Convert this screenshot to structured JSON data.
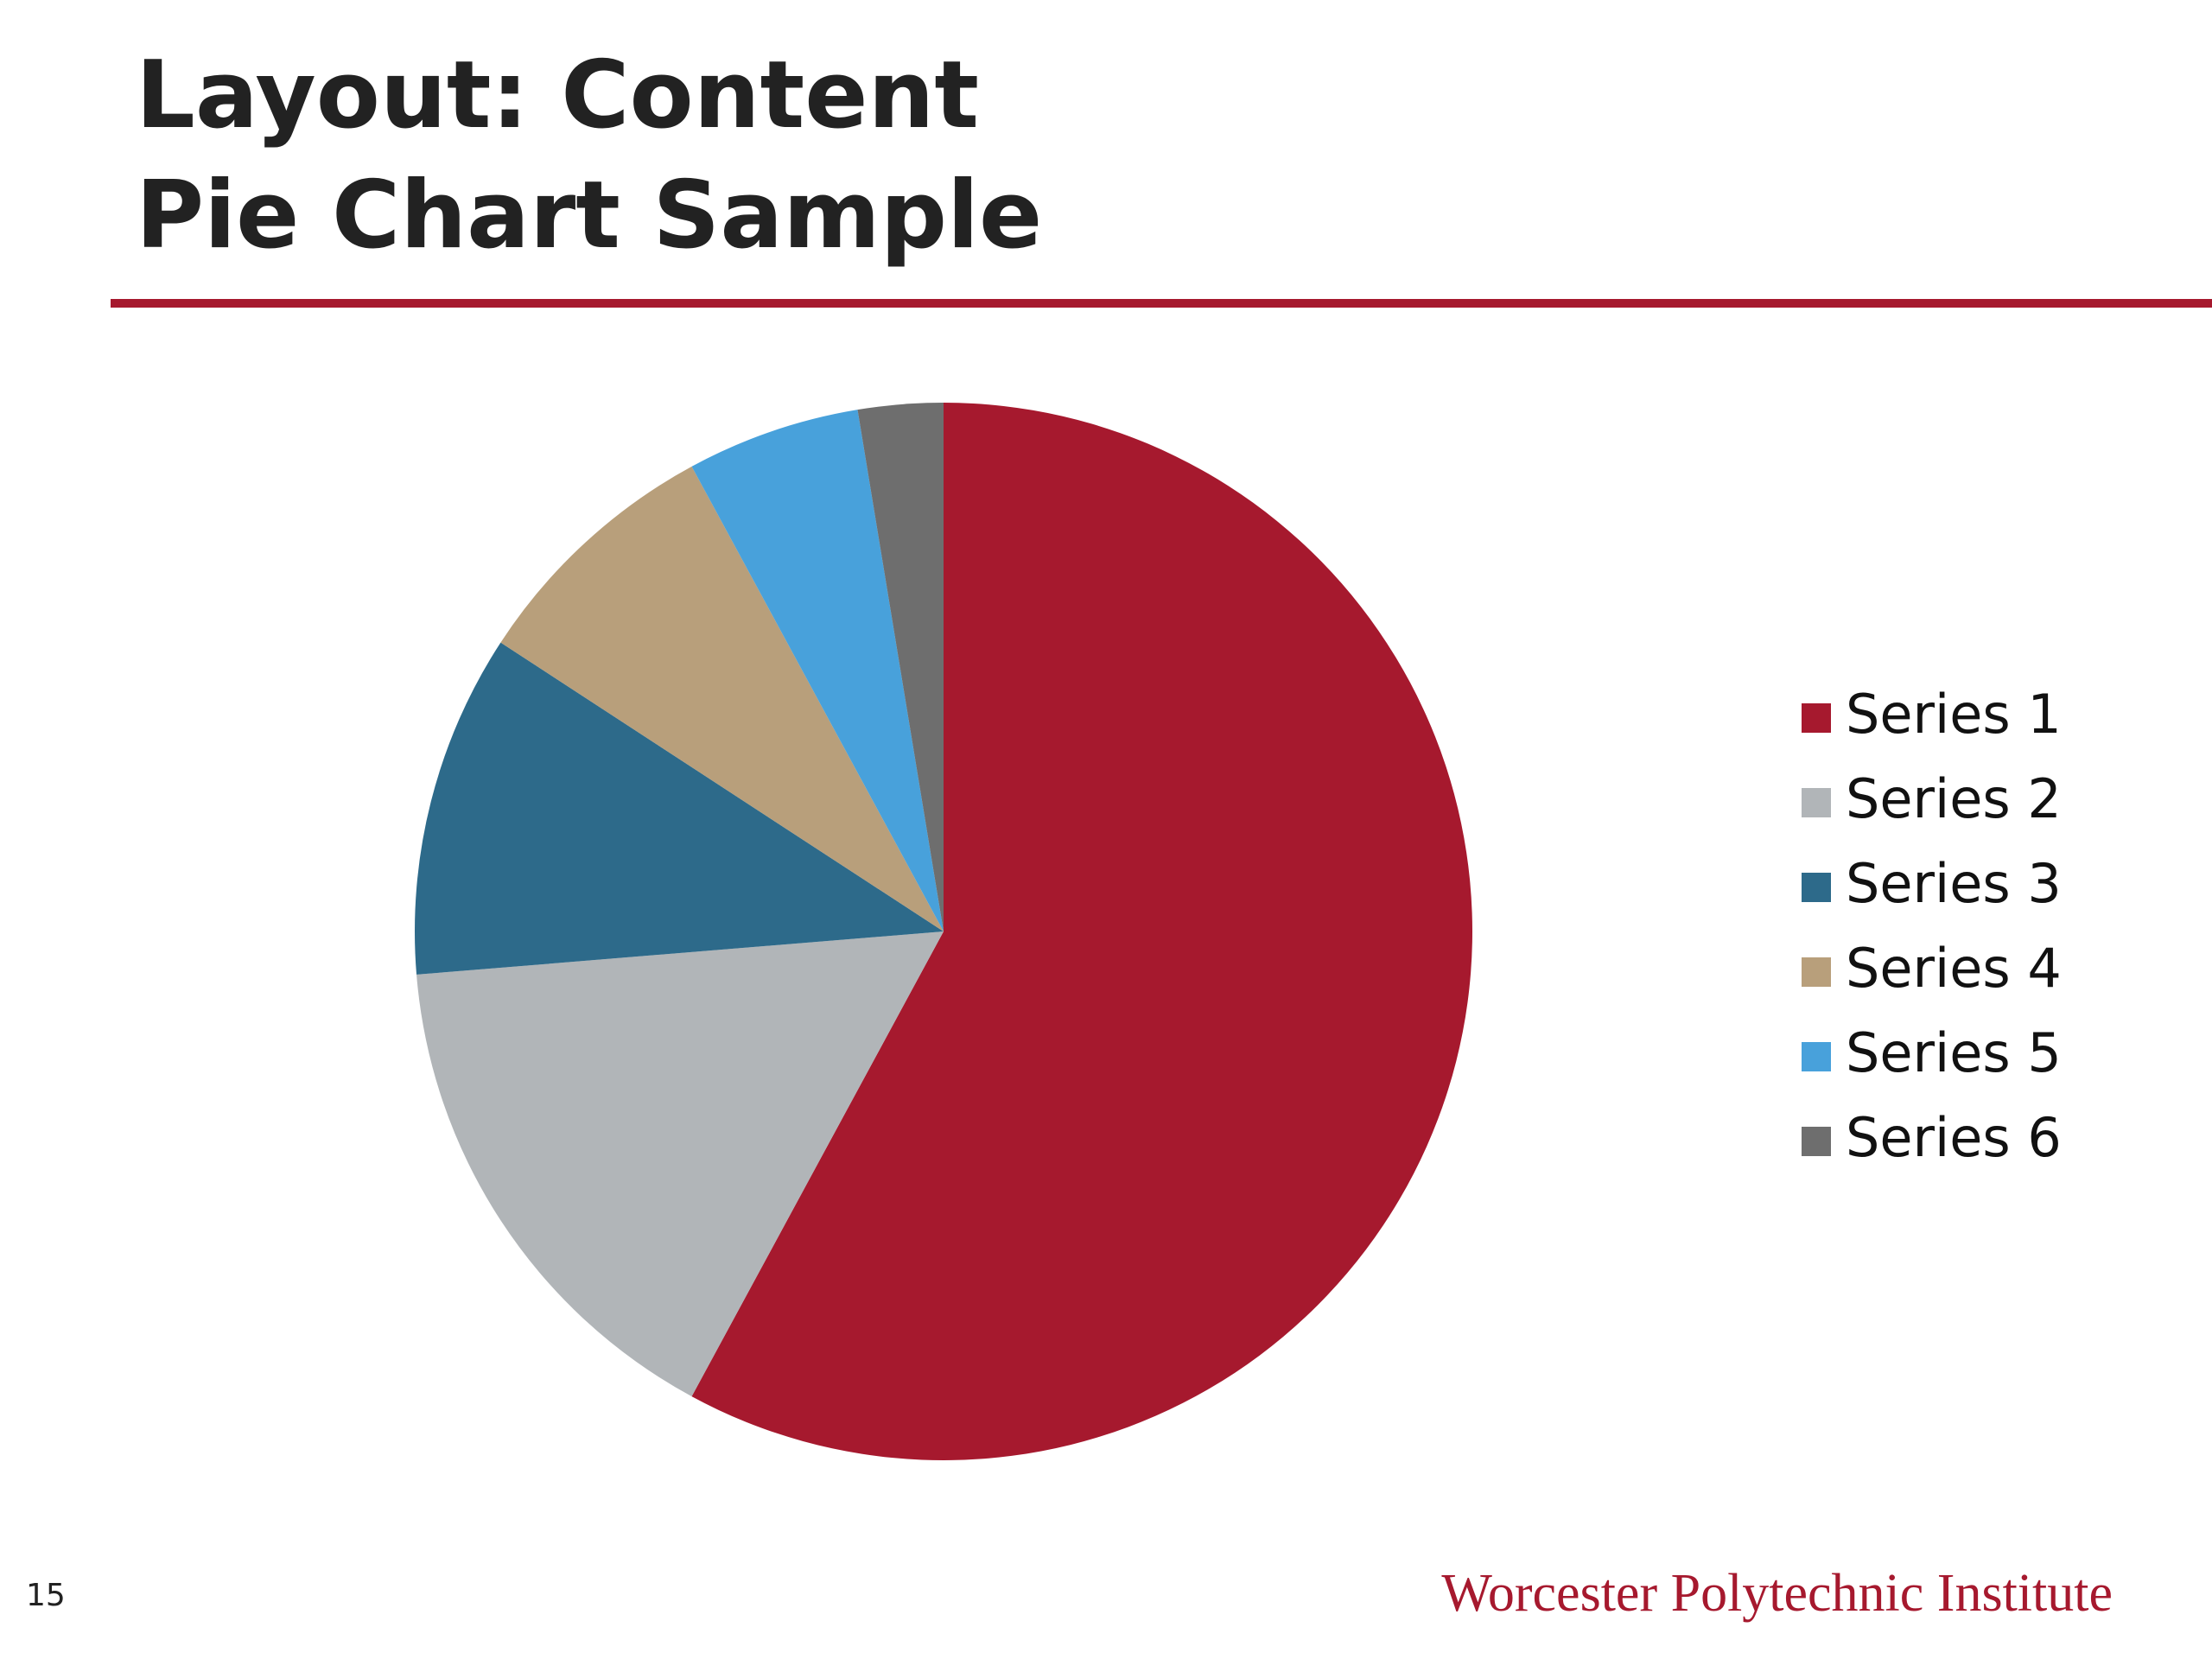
{
  "slide": {
    "title_lines": [
      "Layout: Content",
      "Pie Chart Sample"
    ],
    "page_number": "15",
    "footer": "Worcester Polytechnic Institute"
  },
  "chart_data": {
    "type": "pie",
    "categories": [
      "Series 1",
      "Series 2",
      "Series 3",
      "Series 4",
      "Series 5",
      "Series 6"
    ],
    "values": [
      57.9,
      15.8,
      10.5,
      7.9,
      5.3,
      2.6
    ],
    "colors": [
      "#a6192e",
      "#b1b5b8",
      "#2d6a8a",
      "#b89f7b",
      "#48a1db",
      "#6e6e6e"
    ],
    "legend": "right"
  }
}
